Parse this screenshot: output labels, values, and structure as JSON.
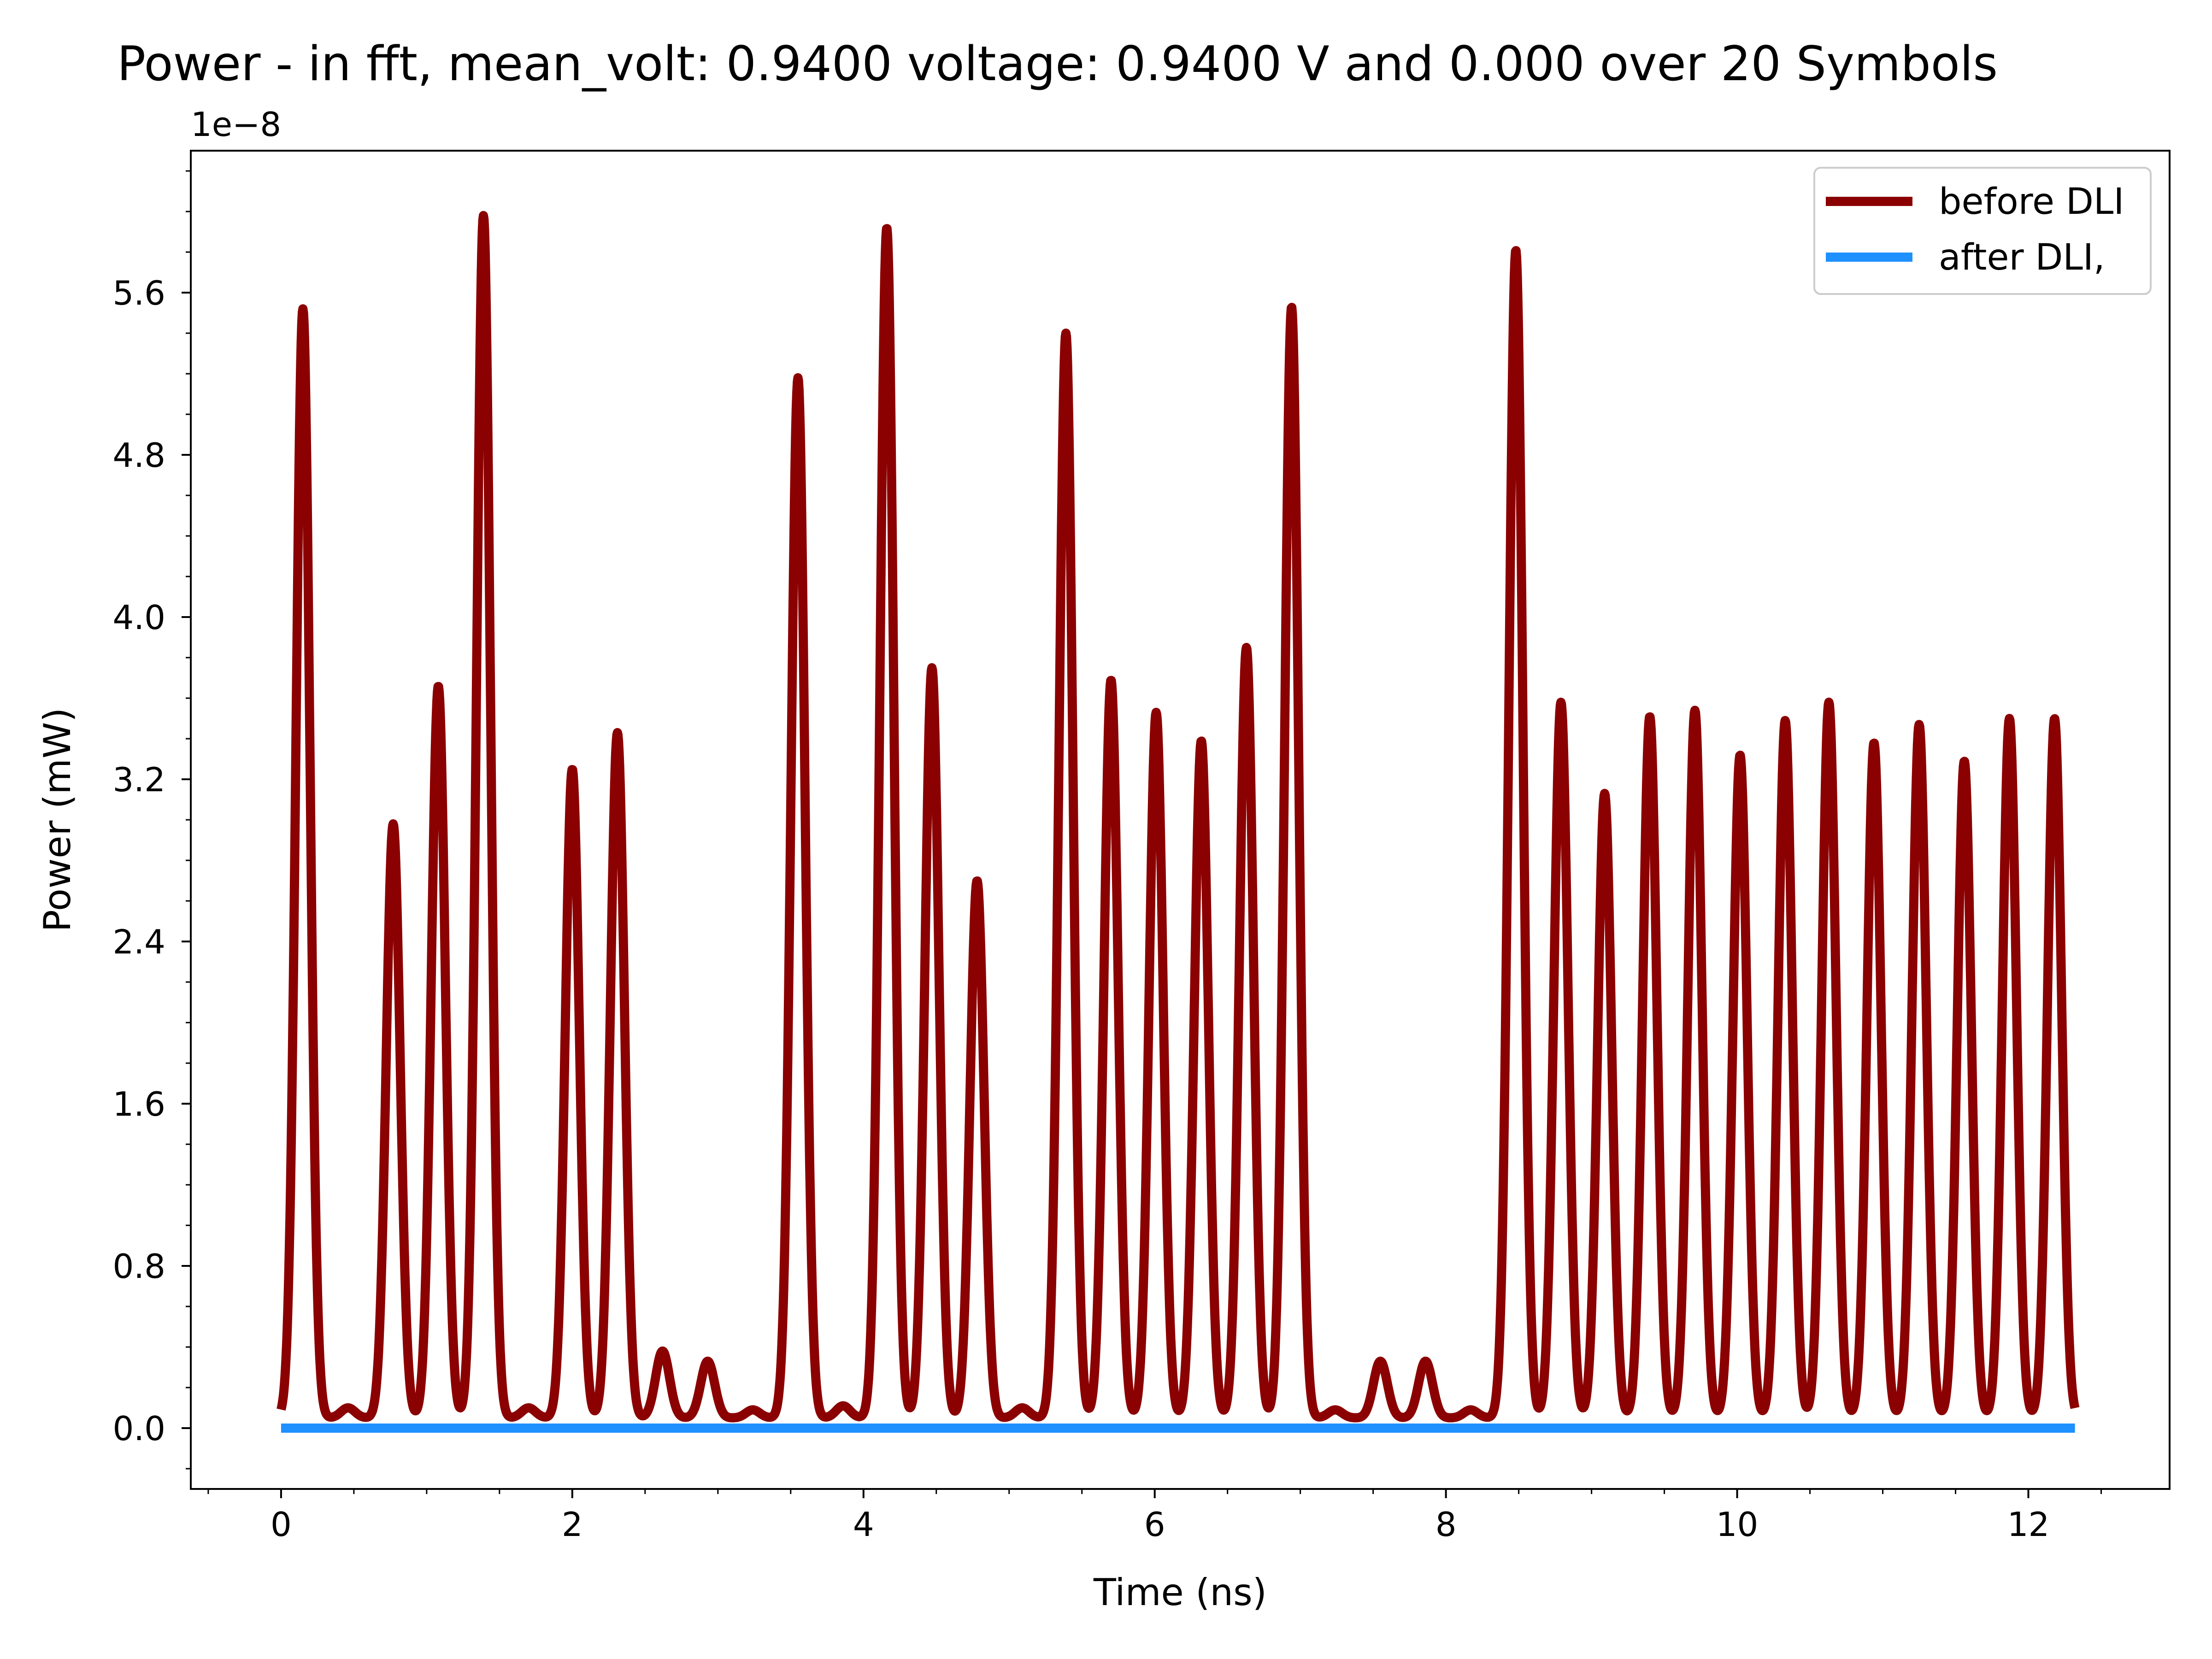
{
  "chart_data": {
    "type": "line",
    "title": "Power - in fft, mean_volt: 0.9400 voltage: 0.9400 V and 0.000 over 20 Symbols",
    "xlabel": "Time (ns)",
    "ylabel": "Power (mW)",
    "y_offset_label": "1e−8",
    "y_multiplier": 1e-08,
    "xlim": [
      -0.62,
      12.97
    ],
    "ylim": [
      -0.3,
      6.3
    ],
    "x_ticks": [
      0,
      2,
      4,
      6,
      8,
      10,
      12
    ],
    "x_tick_labels": [
      "0",
      "2",
      "4",
      "6",
      "8",
      "10",
      "12"
    ],
    "y_ticks": [
      0.0,
      0.8,
      1.6,
      2.4,
      3.2,
      4.0,
      4.8,
      5.6
    ],
    "y_tick_labels": [
      "0.0",
      "0.8",
      "1.6",
      "2.4",
      "3.2",
      "4.0",
      "4.8",
      "5.6"
    ],
    "grid": false,
    "legend_position": "top-right",
    "x_range": [
      0,
      12.32
    ],
    "series": [
      {
        "name": "before DLI",
        "color": "#8b0000",
        "baseline": 0.05,
        "peak_width_ns": 0.048,
        "peaks": [
          {
            "t": 0.15,
            "p": 5.52
          },
          {
            "t": 0.46,
            "p": 0.1
          },
          {
            "t": 0.77,
            "p": 2.98
          },
          {
            "t": 1.08,
            "p": 3.66
          },
          {
            "t": 1.39,
            "p": 5.98
          },
          {
            "t": 1.7,
            "p": 0.1
          },
          {
            "t": 2.0,
            "p": 3.25
          },
          {
            "t": 2.31,
            "p": 3.43
          },
          {
            "t": 2.62,
            "p": 0.38
          },
          {
            "t": 2.93,
            "p": 0.33
          },
          {
            "t": 3.24,
            "p": 0.09
          },
          {
            "t": 3.55,
            "p": 5.18
          },
          {
            "t": 3.86,
            "p": 0.11
          },
          {
            "t": 4.16,
            "p": 5.92
          },
          {
            "t": 4.47,
            "p": 3.75
          },
          {
            "t": 4.78,
            "p": 2.7
          },
          {
            "t": 5.09,
            "p": 0.1
          },
          {
            "t": 5.39,
            "p": 5.4
          },
          {
            "t": 5.7,
            "p": 3.69
          },
          {
            "t": 6.01,
            "p": 3.53
          },
          {
            "t": 6.32,
            "p": 3.39
          },
          {
            "t": 6.63,
            "p": 3.85
          },
          {
            "t": 6.94,
            "p": 5.53
          },
          {
            "t": 7.24,
            "p": 0.09
          },
          {
            "t": 7.55,
            "p": 0.33
          },
          {
            "t": 7.86,
            "p": 0.33
          },
          {
            "t": 8.17,
            "p": 0.09
          },
          {
            "t": 8.48,
            "p": 5.81
          },
          {
            "t": 8.79,
            "p": 3.58
          },
          {
            "t": 9.09,
            "p": 3.13
          },
          {
            "t": 9.4,
            "p": 3.51
          },
          {
            "t": 9.71,
            "p": 3.54
          },
          {
            "t": 10.02,
            "p": 3.32
          },
          {
            "t": 10.33,
            "p": 3.49
          },
          {
            "t": 10.63,
            "p": 3.58
          },
          {
            "t": 10.94,
            "p": 3.38
          },
          {
            "t": 11.25,
            "p": 3.47
          },
          {
            "t": 11.56,
            "p": 3.29
          },
          {
            "t": 11.87,
            "p": 3.5
          },
          {
            "t": 12.18,
            "p": 3.5
          }
        ]
      },
      {
        "name": "after DLI,",
        "color": "#1e90ff",
        "x": [
          0,
          12.32
        ],
        "y": [
          0,
          0
        ]
      }
    ]
  }
}
